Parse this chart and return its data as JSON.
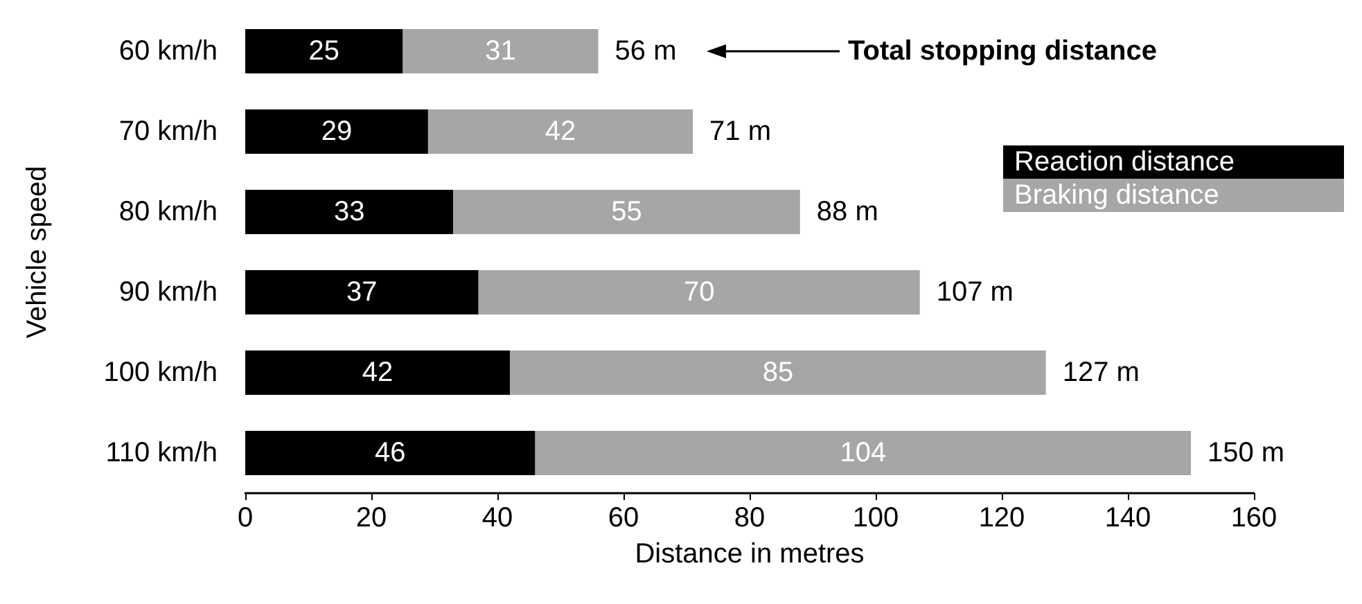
{
  "chart_data": {
    "type": "bar",
    "orientation": "horizontal",
    "stacked": true,
    "xlabel": "Distance in metres",
    "ylabel": "Vehicle speed",
    "categories": [
      "60 km/h",
      "70 km/h",
      "80 km/h",
      "90 km/h",
      "100 km/h",
      "110 km/h"
    ],
    "series": [
      {
        "name": "Reaction distance",
        "color": "#000000",
        "values": [
          25,
          29,
          33,
          37,
          42,
          46
        ]
      },
      {
        "name": "Braking distance",
        "color": "#a6a6a6",
        "values": [
          31,
          42,
          55,
          70,
          85,
          104
        ]
      }
    ],
    "totals": [
      "56 m",
      "71 m",
      "88 m",
      "107 m",
      "127 m",
      "150 m"
    ],
    "annotations": [
      "Total stopping distance"
    ],
    "xlim": [
      0,
      160
    ],
    "xticks": [
      0,
      20,
      40,
      60,
      80,
      100,
      120,
      140,
      160
    ],
    "data_labels": true,
    "legend": "right",
    "grid": false
  }
}
